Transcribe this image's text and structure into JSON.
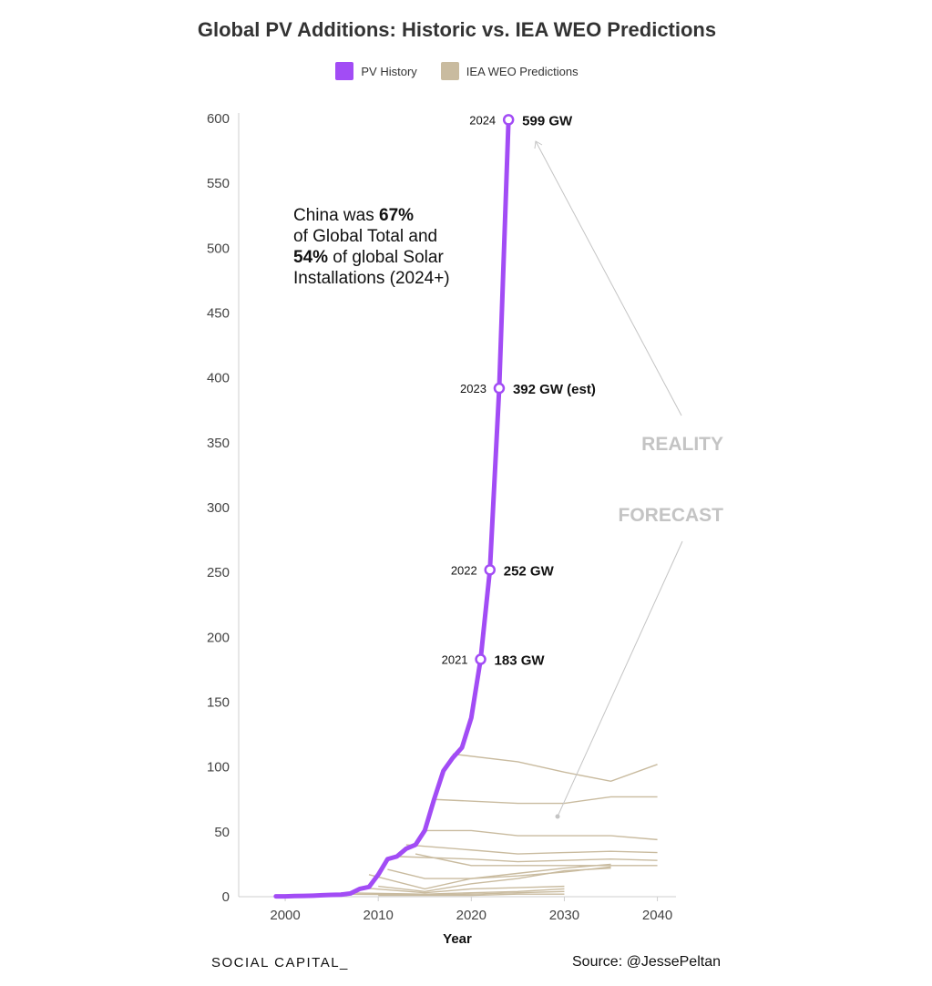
{
  "brand": "SOCIAL CAPITAL_",
  "source": "Source: @JessePeltan",
  "colors": {
    "history": "#a24cf5",
    "prediction": "#c9bb9f",
    "axis": "#cfcfcf",
    "arrow": "#c4c4c4",
    "ghost_text": "#c4c4c4"
  },
  "chart_data": {
    "type": "line",
    "title": "Global PV Additions: Historic vs. IEA WEO Predictions",
    "xlabel": "Year",
    "ylabel": "",
    "xlim": [
      1995,
      2042
    ],
    "ylim": [
      0,
      600
    ],
    "x_ticks": [
      2000,
      2010,
      2020,
      2030,
      2040
    ],
    "y_ticks": [
      0,
      50,
      100,
      150,
      200,
      250,
      300,
      350,
      400,
      450,
      500,
      550,
      600
    ],
    "legend": [
      {
        "name": "PV History",
        "color": "#a24cf5"
      },
      {
        "name": "IEA WEO Predictions",
        "color": "#c9bb9f"
      }
    ],
    "series": [
      {
        "name": "PV History",
        "x": [
          1999,
          2000,
          2001,
          2002,
          2003,
          2004,
          2005,
          2006,
          2007,
          2008,
          2009,
          2010,
          2011,
          2012,
          2013,
          2014,
          2015,
          2016,
          2017,
          2018,
          2019,
          2020,
          2021,
          2022,
          2023,
          2024
        ],
        "values": [
          0.3,
          0.3,
          0.5,
          0.6,
          0.8,
          1.1,
          1.4,
          1.6,
          2.5,
          6,
          7.5,
          17,
          29,
          31,
          37,
          40,
          51,
          75,
          97,
          107,
          115,
          138,
          183,
          252,
          392,
          599
        ]
      }
    ],
    "predictions": [
      {
        "x": [
          2018,
          2025,
          2030,
          2035,
          2040
        ],
        "values": [
          110,
          104,
          96,
          89,
          102
        ]
      },
      {
        "x": [
          2016,
          2025,
          2030,
          2035,
          2040
        ],
        "values": [
          75,
          72,
          72,
          77,
          77
        ]
      },
      {
        "x": [
          2015,
          2020,
          2025,
          2030,
          2035,
          2040
        ],
        "values": [
          51,
          51,
          47,
          47,
          47,
          44
        ]
      },
      {
        "x": [
          2013,
          2020,
          2025,
          2030,
          2035,
          2040
        ],
        "values": [
          40,
          36,
          33,
          34,
          35,
          34
        ]
      },
      {
        "x": [
          2012,
          2020,
          2025,
          2030,
          2035,
          2040
        ],
        "values": [
          31,
          29,
          27,
          28,
          29,
          28
        ]
      },
      {
        "x": [
          2014,
          2020,
          2025,
          2030,
          2035,
          2040
        ],
        "values": [
          33,
          24,
          24,
          24,
          24,
          24
        ]
      },
      {
        "x": [
          2011,
          2015,
          2020,
          2025,
          2030,
          2035
        ],
        "values": [
          21,
          14,
          14,
          16,
          19,
          23
        ]
      },
      {
        "x": [
          2009,
          2015,
          2020,
          2025,
          2030,
          2035
        ],
        "values": [
          17,
          6,
          14,
          18,
          22,
          25
        ]
      },
      {
        "x": [
          2010,
          2015,
          2020,
          2025,
          2030,
          2035
        ],
        "values": [
          8,
          4,
          10,
          14,
          20,
          22
        ]
      },
      {
        "x": [
          2008,
          2015,
          2020,
          2025,
          2030
        ],
        "values": [
          7,
          3,
          6,
          7,
          8
        ]
      },
      {
        "x": [
          2006,
          2015,
          2020,
          2025,
          2030
        ],
        "values": [
          3,
          2,
          3,
          4,
          6
        ]
      },
      {
        "x": [
          2005,
          2015,
          2020,
          2025,
          2030
        ],
        "values": [
          2,
          1.5,
          2,
          3,
          4
        ]
      },
      {
        "x": [
          2010,
          2020,
          2025,
          2030
        ],
        "values": [
          1,
          1,
          2,
          2
        ]
      }
    ],
    "points": [
      {
        "x": 2021,
        "y": 183,
        "year_label": "2021",
        "value_label": "183 GW"
      },
      {
        "x": 2022,
        "y": 252,
        "year_label": "2022",
        "value_label": "252 GW"
      },
      {
        "x": 2023,
        "y": 392,
        "year_label": "2023",
        "value_label": "392 GW (est)"
      },
      {
        "x": 2024,
        "y": 599,
        "year_label": "2024",
        "value_label": "599 GW"
      }
    ],
    "annotations": {
      "china_lines": [
        [
          {
            "t": "China was ",
            "b": false
          },
          {
            "t": "67%",
            "b": true
          }
        ],
        [
          {
            "t": "of Global Total and",
            "b": false
          }
        ],
        [
          {
            "t": "54%",
            "b": true
          },
          {
            "t": " of global Solar",
            "b": false
          }
        ],
        [
          {
            "t": "Installations (2024+)",
            "b": false
          }
        ]
      ],
      "reality": "REALITY",
      "forecast": "FORECAST"
    }
  }
}
